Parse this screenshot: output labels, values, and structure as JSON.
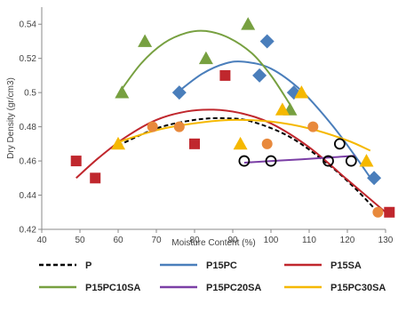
{
  "chart_data": {
    "type": "scatter",
    "title": "",
    "xlabel": "Moisture Content (%)",
    "ylabel": "Dry Density (gr/cm3)",
    "xlim": [
      40,
      130
    ],
    "ylim": [
      0.42,
      0.55
    ],
    "xticks": [
      "40",
      "50",
      "60",
      "70",
      "80",
      "90",
      "100",
      "110",
      "120",
      "130"
    ],
    "yticks": [
      "0.42",
      "0.44",
      "0.46",
      "0.48",
      "0.5",
      "0.52",
      "0.54"
    ],
    "grid": false,
    "legend_position": "bottom",
    "series": [
      {
        "name": "P",
        "color": "#000000",
        "marker": "open-circle",
        "line": "dashed",
        "points": [
          [
            93,
            0.46
          ],
          [
            100,
            0.46
          ],
          [
            115,
            0.46
          ],
          [
            118,
            0.47
          ],
          [
            121,
            0.46
          ]
        ],
        "curve": [
          [
            60,
            0.469
          ],
          [
            70,
            0.479
          ],
          [
            80,
            0.484
          ],
          [
            88,
            0.485
          ],
          [
            95,
            0.483
          ],
          [
            105,
            0.474
          ],
          [
            115,
            0.458
          ],
          [
            122,
            0.444
          ],
          [
            128,
            0.43
          ]
        ]
      },
      {
        "name": "P15PC",
        "color": "#4A7EBB",
        "marker": "diamond",
        "line": "solid",
        "points": [
          [
            76,
            0.5
          ],
          [
            97,
            0.51
          ],
          [
            99,
            0.53
          ],
          [
            106,
            0.5
          ],
          [
            127,
            0.45
          ]
        ],
        "curve": [
          [
            76,
            0.501
          ],
          [
            82,
            0.511
          ],
          [
            88,
            0.517
          ],
          [
            93,
            0.518
          ],
          [
            100,
            0.514
          ],
          [
            108,
            0.501
          ],
          [
            116,
            0.481
          ],
          [
            122,
            0.463
          ],
          [
            127,
            0.447
          ]
        ]
      },
      {
        "name": "P15SA",
        "color": "#C0272D",
        "marker": "square",
        "line": "solid",
        "points": [
          [
            49,
            0.46
          ],
          [
            54,
            0.45
          ],
          [
            80,
            0.47
          ],
          [
            88,
            0.51
          ],
          [
            131,
            0.43
          ]
        ],
        "curve": [
          [
            49,
            0.45
          ],
          [
            55,
            0.462
          ],
          [
            62,
            0.474
          ],
          [
            70,
            0.484
          ],
          [
            78,
            0.489
          ],
          [
            85,
            0.49
          ],
          [
            92,
            0.488
          ],
          [
            100,
            0.482
          ],
          [
            110,
            0.468
          ],
          [
            120,
            0.449
          ],
          [
            130,
            0.43
          ]
        ]
      },
      {
        "name": "P15PC10SA",
        "color": "#77A040",
        "marker": "triangle",
        "line": "solid",
        "points": [
          [
            61,
            0.5
          ],
          [
            67,
            0.53
          ],
          [
            83,
            0.52
          ],
          [
            94,
            0.54
          ],
          [
            105,
            0.49
          ]
        ],
        "curve": [
          [
            60,
            0.499
          ],
          [
            66,
            0.517
          ],
          [
            72,
            0.529
          ],
          [
            78,
            0.535
          ],
          [
            83,
            0.536
          ],
          [
            89,
            0.532
          ],
          [
            95,
            0.523
          ],
          [
            100,
            0.51
          ],
          [
            105,
            0.493
          ]
        ]
      },
      {
        "name": "P15PC20SA",
        "color": "#7B3FA6",
        "marker": "circle",
        "line": "solid",
        "points": [],
        "curve": [
          [
            93,
            0.459
          ],
          [
            108,
            0.461
          ],
          [
            122,
            0.463
          ]
        ]
      },
      {
        "name": "P15PC30SA",
        "color": "#F5B800",
        "marker": "triangle",
        "line": "solid",
        "points": [
          [
            60,
            0.47
          ],
          [
            92,
            0.47
          ],
          [
            103,
            0.49
          ],
          [
            108,
            0.5
          ],
          [
            125,
            0.46
          ]
        ],
        "curve": [
          [
            60,
            0.471
          ],
          [
            70,
            0.478
          ],
          [
            80,
            0.482
          ],
          [
            90,
            0.484
          ],
          [
            100,
            0.483
          ],
          [
            110,
            0.479
          ],
          [
            120,
            0.472
          ],
          [
            126,
            0.466
          ]
        ]
      },
      {
        "name": "",
        "color": "#E8893C",
        "marker": "circle",
        "line": "none",
        "points": [
          [
            69,
            0.48
          ],
          [
            76,
            0.48
          ],
          [
            99,
            0.47
          ],
          [
            111,
            0.48
          ],
          [
            128,
            0.43
          ]
        ],
        "curve": []
      }
    ],
    "legend": [
      "P",
      "P15PC",
      "P15SA",
      "P15PC10SA",
      "P15PC20SA",
      "P15PC30SA"
    ]
  }
}
